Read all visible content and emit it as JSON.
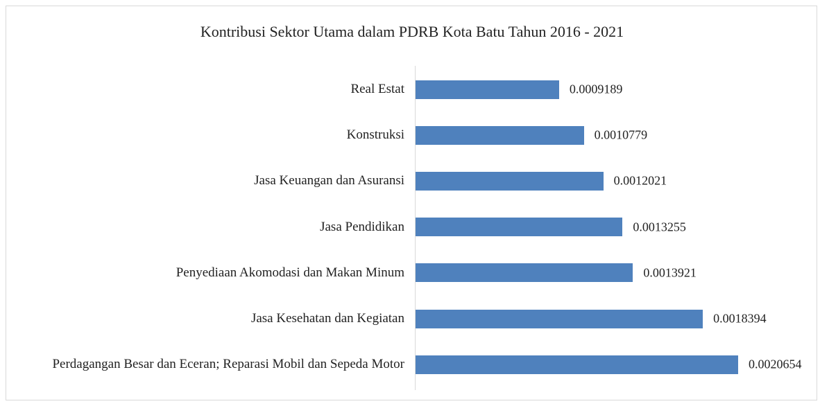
{
  "chart_data": {
    "type": "bar",
    "orientation": "horizontal",
    "title": "Kontribusi Sektor Utama dalam PDRB Kota Batu Tahun 2016 - 2021",
    "categories": [
      "Real Estat",
      "Konstruksi",
      "Jasa Keuangan dan Asuransi",
      "Jasa Pendidikan",
      "Penyediaan Akomodasi dan Makan Minum",
      "Jasa Kesehatan dan Kegiatan",
      "Perdagangan Besar dan Eceran; Reparasi Mobil dan Sepeda Motor"
    ],
    "values": [
      0.0009189,
      0.0010779,
      0.0012021,
      0.0013255,
      0.0013921,
      0.0018394,
      0.0020654
    ],
    "color": "#4f81bd"
  }
}
